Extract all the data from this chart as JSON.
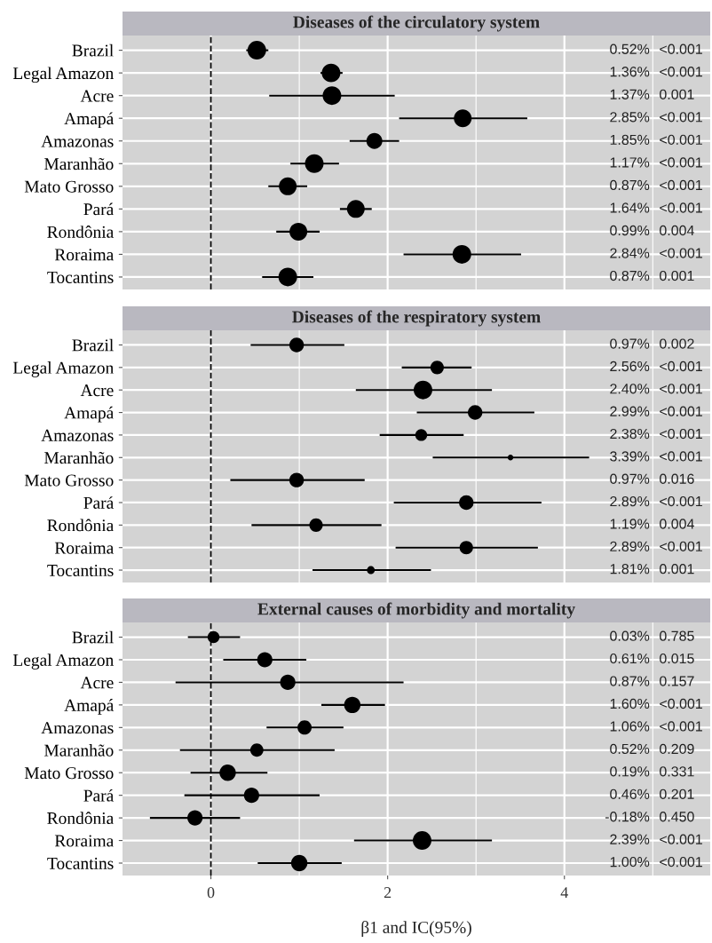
{
  "chart_data": [
    {
      "type": "bubble",
      "orientation": "horizontal",
      "title": "Diseases of the circulatory system",
      "categories": [
        "Brazil",
        "Legal Amazon",
        "Acre",
        "Amapá",
        "Amazonas",
        "Maranhão",
        "Mato Grosso",
        "Pará",
        "Rondônia",
        "Roraima",
        "Tocantins"
      ],
      "values": [
        0.52,
        1.36,
        1.37,
        2.85,
        1.85,
        1.17,
        0.87,
        1.64,
        0.99,
        2.84,
        0.87
      ],
      "errors": [
        [
          0.4,
          0.65
        ],
        [
          1.24,
          1.49
        ],
        [
          0.66,
          2.08
        ],
        [
          2.13,
          3.58
        ],
        [
          1.57,
          2.13
        ],
        [
          0.9,
          1.45
        ],
        [
          0.65,
          1.09
        ],
        [
          1.46,
          1.82
        ],
        [
          0.74,
          1.23
        ],
        [
          2.18,
          3.51
        ],
        [
          0.58,
          1.16
        ]
      ],
      "sizes": [
        1,
        1,
        1,
        0.91,
        0.73,
        1,
        0.91,
        0.91,
        0.91,
        1,
        1
      ],
      "color": "#000000",
      "annotations": [
        "0.52%",
        "1.36%",
        "1.37%",
        "2.85%",
        "1.85%",
        "1.17%",
        "0.87%",
        "1.64%",
        "0.99%",
        "2.84%",
        "0.87%",
        "<0.001",
        "<0.001",
        "0.001",
        "<0.001",
        "<0.001",
        "<0.001",
        "<0.001",
        "<0.001",
        "0.004",
        "<0.001",
        "0.001"
      ],
      "xlim": [
        -1,
        5.65
      ],
      "xticks": [
        0,
        2,
        4
      ],
      "tick_labels": "y",
      "grid": true,
      "ref_lines": [
        {
          "axis": "x",
          "value": 0,
          "color": "#000000",
          "line_style": "dashed"
        }
      ]
    },
    {
      "type": "bubble",
      "orientation": "horizontal",
      "title": "Diseases of the respiratory system",
      "categories": [
        "Brazil",
        "Legal Amazon",
        "Acre",
        "Amapá",
        "Amazonas",
        "Maranhão",
        "Mato Grosso",
        "Pará",
        "Rondônia",
        "Roraima",
        "Tocantins"
      ],
      "values": [
        0.97,
        2.56,
        2.4,
        2.99,
        2.38,
        3.39,
        0.97,
        2.89,
        1.19,
        2.89,
        1.81
      ],
      "errors": [
        [
          0.45,
          1.51
        ],
        [
          2.16,
          2.95
        ],
        [
          1.64,
          3.18
        ],
        [
          2.33,
          3.66
        ],
        [
          1.91,
          2.86
        ],
        [
          2.51,
          4.28
        ],
        [
          0.22,
          1.74
        ],
        [
          2.07,
          3.74
        ],
        [
          0.46,
          1.93
        ],
        [
          2.09,
          3.7
        ],
        [
          1.15,
          2.49
        ]
      ],
      "sizes": [
        0.61,
        0.52,
        1,
        0.61,
        0.41,
        0.09,
        0.61,
        0.61,
        0.52,
        0.52,
        0.18
      ],
      "color": "#000000",
      "annotations": [
        "0.97%",
        "2.56%",
        "2.40%",
        "2.99%",
        "2.38%",
        "3.39%",
        "0.97%",
        "2.89%",
        "1.19%",
        "2.89%",
        "1.81%",
        "0.002",
        "<0.001",
        "<0.001",
        "<0.001",
        "<0.001",
        "<0.001",
        "0.016",
        "<0.001",
        "0.004",
        "<0.001",
        "0.001"
      ],
      "xlim": [
        -1,
        5.65
      ],
      "xticks": [
        0,
        2,
        4
      ],
      "tick_labels": "y",
      "grid": true,
      "ref_lines": [
        {
          "axis": "x",
          "value": 0,
          "color": "#000000",
          "line_style": "dashed"
        }
      ]
    },
    {
      "type": "bubble",
      "orientation": "horizontal",
      "title": "External causes of morbidity and mortality",
      "xlabel": "β1 and IC(95%)",
      "categories": [
        "Brazil",
        "Legal Amazon",
        "Acre",
        "Amapá",
        "Amazonas",
        "Maranhão",
        "Mato Grosso",
        "Pará",
        "Rondônia",
        "Roraima",
        "Tocantins"
      ],
      "values": [
        0.03,
        0.61,
        0.87,
        1.6,
        1.06,
        0.52,
        0.19,
        0.46,
        -0.18,
        2.39,
        1.0
      ],
      "errors": [
        [
          -0.26,
          0.33
        ],
        [
          0.14,
          1.08
        ],
        [
          -0.4,
          2.18
        ],
        [
          1.25,
          1.97
        ],
        [
          0.63,
          1.5
        ],
        [
          -0.35,
          1.4
        ],
        [
          -0.23,
          0.64
        ],
        [
          -0.3,
          1.23
        ],
        [
          -0.69,
          0.33
        ],
        [
          1.62,
          3.18
        ],
        [
          0.53,
          1.48
        ]
      ],
      "sizes": [
        0.41,
        0.67,
        0.67,
        0.77,
        0.58,
        0.5,
        0.77,
        0.67,
        0.67,
        1,
        0.77
      ],
      "color": "#000000",
      "annotations": [
        "0.03%",
        "0.61%",
        "0.87%",
        "1.60%",
        "1.06%",
        "0.52%",
        "0.19%",
        "0.46%",
        "-0.18%",
        "2.39%",
        "1.00%",
        "0.785",
        "0.015",
        "0.157",
        "<0.001",
        "<0.001",
        "0.209",
        "0.331",
        "0.201",
        "0.450",
        "<0.001",
        "<0.001"
      ],
      "xlim": [
        -1,
        5.65
      ],
      "xticks": [
        0,
        2,
        4
      ],
      "grid": true,
      "ref_lines": [
        {
          "axis": "x",
          "value": 0,
          "color": "#000000",
          "line_style": "dashed"
        }
      ]
    }
  ]
}
